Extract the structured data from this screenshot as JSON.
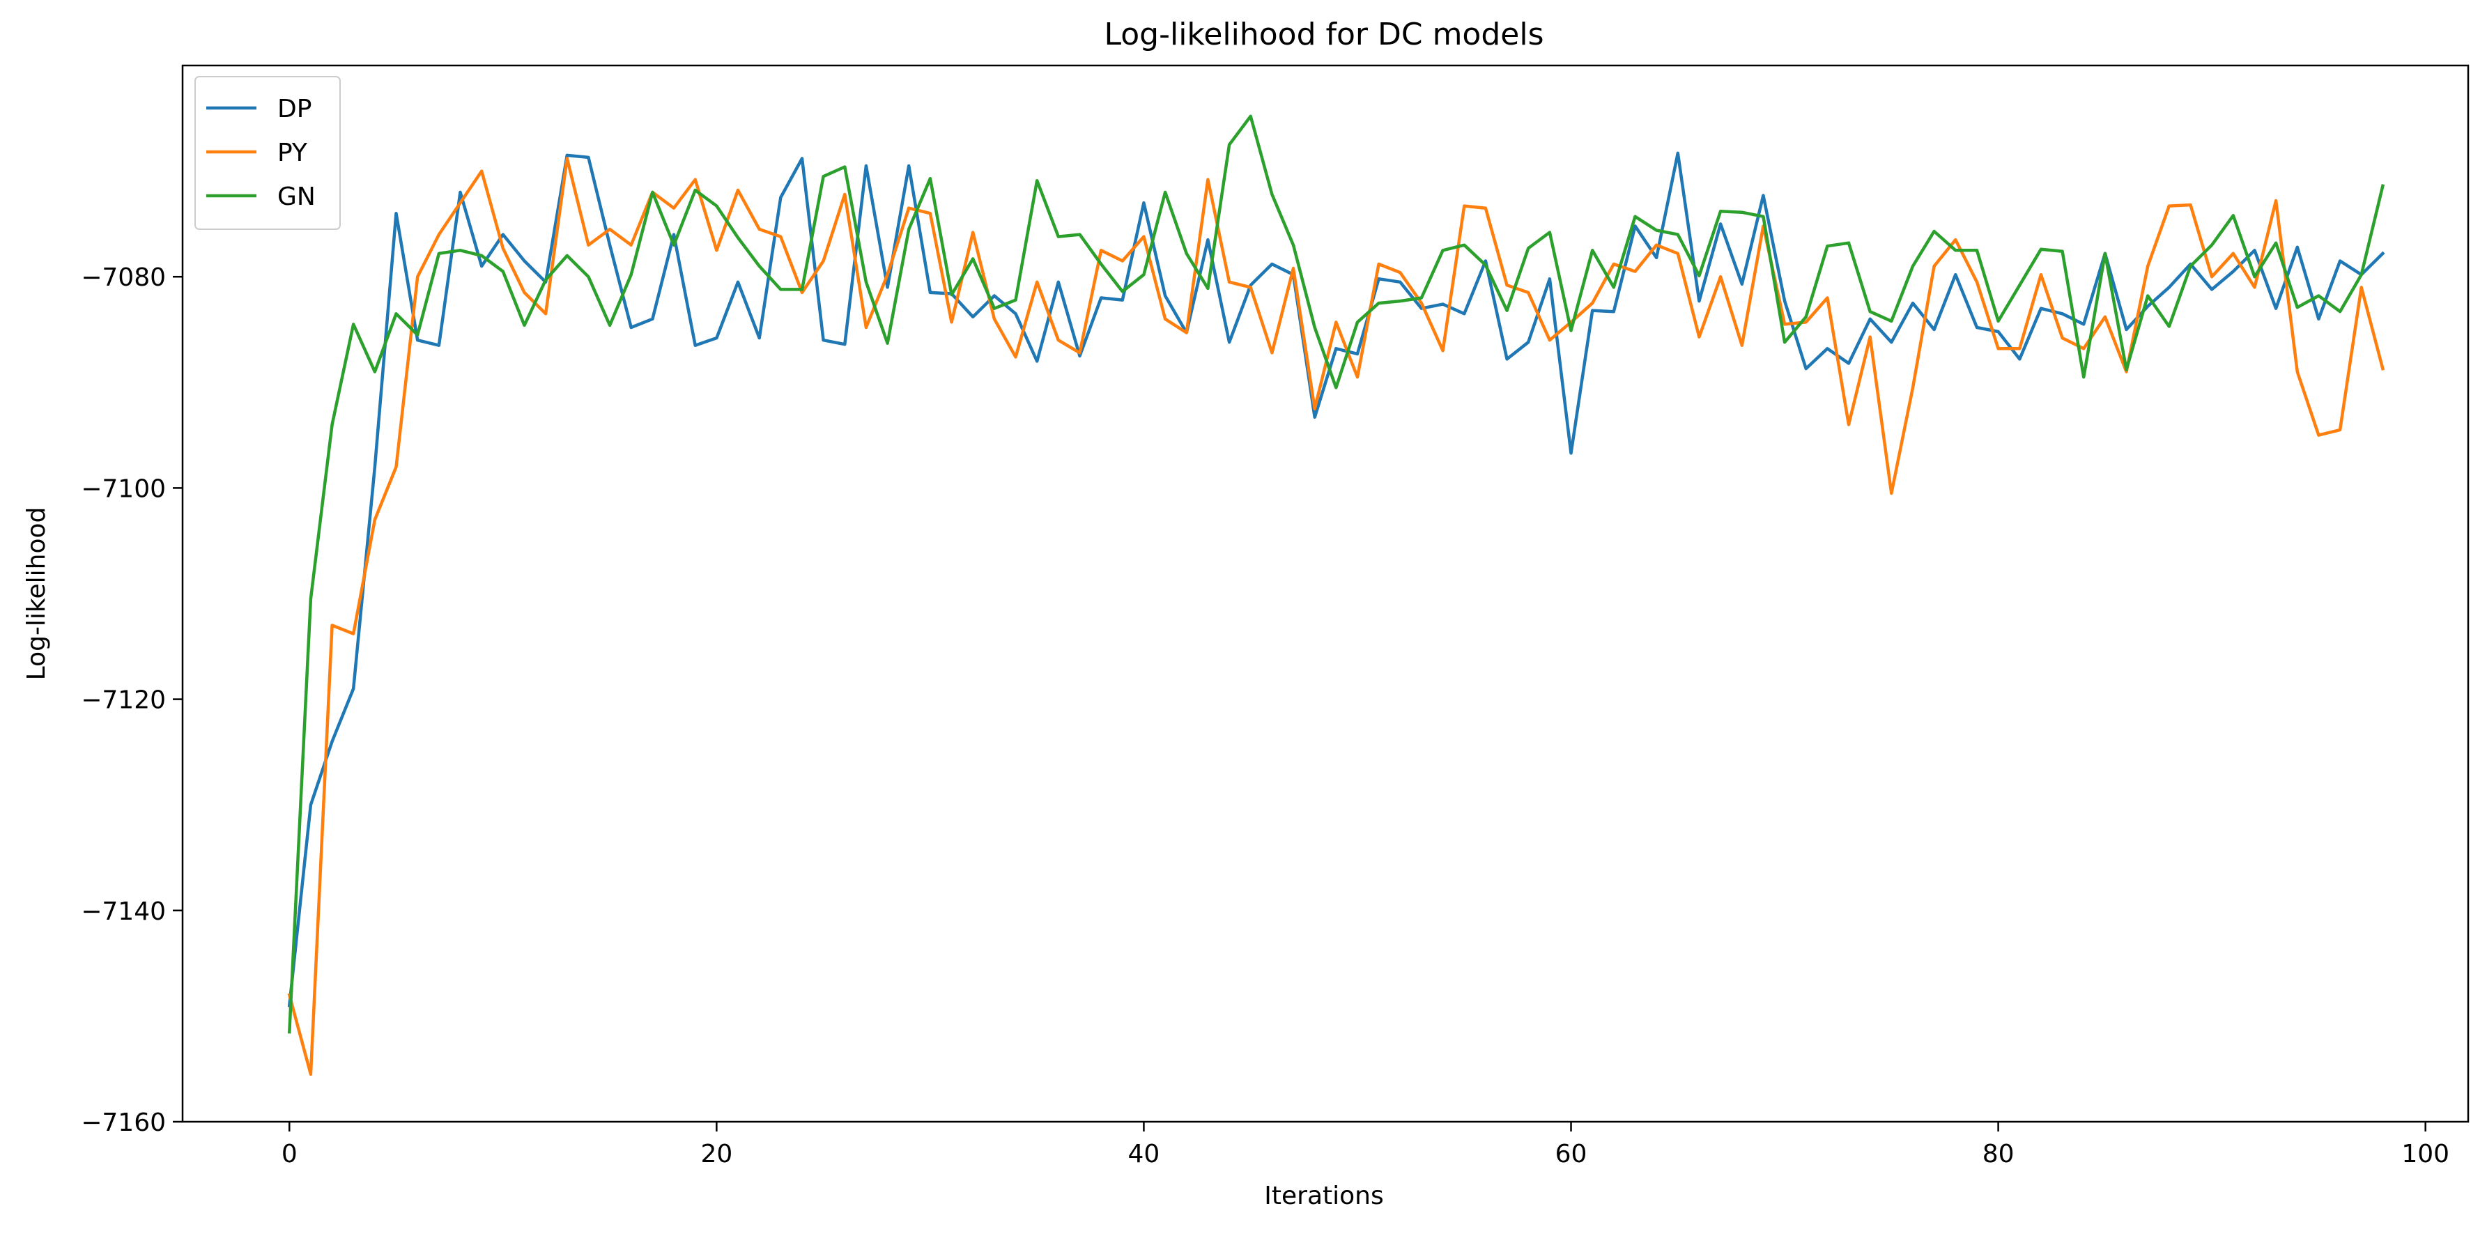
{
  "chart_data": {
    "type": "line",
    "title": "Log-likelihood for DC models",
    "xlabel": "Iterations",
    "ylabel": "Log-likelihood",
    "xlim": [
      -5,
      102
    ],
    "ylim": [
      -7160,
      -7060
    ],
    "xticks": [
      0,
      20,
      40,
      60,
      80,
      100
    ],
    "xtick_labels": [
      "0",
      "20",
      "40",
      "60",
      "80",
      "100"
    ],
    "yticks": [
      -7160,
      -7140,
      -7120,
      -7100,
      -7080
    ],
    "ytick_labels": [
      "−7160",
      "−7140",
      "−7120",
      "−7100",
      "−7080"
    ],
    "grid": false,
    "legend_position": "top-left",
    "series": [
      {
        "name": "DP",
        "color": "#1f77b4",
        "x": [
          0,
          1,
          2,
          3,
          4,
          5,
          6,
          7,
          8,
          9,
          10,
          11,
          12,
          13,
          14,
          15,
          16,
          17,
          18,
          19,
          20,
          21,
          22,
          23,
          24,
          25,
          26,
          27,
          28,
          29,
          30,
          31,
          32,
          33,
          34,
          35,
          36,
          37,
          38,
          39,
          40,
          41,
          42,
          43,
          44,
          45,
          46,
          47,
          48,
          49,
          50,
          51,
          52,
          53,
          54,
          55,
          56,
          57,
          58,
          59,
          60,
          61,
          62,
          63,
          64,
          65,
          66,
          67,
          68,
          69,
          70,
          71,
          72,
          73,
          74,
          75,
          76,
          77,
          78,
          79,
          80,
          81,
          82,
          83,
          84,
          85,
          86,
          87,
          88,
          89,
          90,
          91,
          92,
          93,
          94,
          95,
          96,
          97,
          98
        ],
        "values": [
          -7149,
          -7130,
          -7124,
          -7119,
          -7098,
          -7074,
          -7086,
          -7086.5,
          -7072,
          -7079,
          -7076,
          -7078.5,
          -7080.5,
          -7068.5,
          -7068.7,
          -7077,
          -7084.8,
          -7084,
          -7076,
          -7086.5,
          -7085.8,
          -7080.5,
          -7085.8,
          -7072.5,
          -7068.8,
          -7086,
          -7086.4,
          -7069.5,
          -7081,
          -7069.5,
          -7081.5,
          -7081.6,
          -7083.8,
          -7081.8,
          -7083.5,
          -7088,
          -7080.5,
          -7087.5,
          -7082,
          -7082.2,
          -7073,
          -7081.8,
          -7085.3,
          -7076.5,
          -7086.2,
          -7080.8,
          -7078.8,
          -7079.8,
          -7093.3,
          -7086.8,
          -7087.3,
          -7080.2,
          -7080.5,
          -7083,
          -7082.6,
          -7083.5,
          -7078.5,
          -7087.8,
          -7086.2,
          -7080.2,
          -7096.7,
          -7083.2,
          -7083.3,
          -7075.2,
          -7078.2,
          -7068.3,
          -7082.3,
          -7075,
          -7080.7,
          -7072.3,
          -7082.3,
          -7088.7,
          -7086.8,
          -7088.2,
          -7084,
          -7086.2,
          -7082.5,
          -7085,
          -7079.8,
          -7084.8,
          -7085.2,
          -7087.8,
          -7083,
          -7083.5,
          -7084.5,
          -7077.8,
          -7085,
          -7082.8,
          -7081,
          -7078.8,
          -7081.2,
          -7079.5,
          -7077.5,
          -7083,
          -7077.2,
          -7084,
          -7078.5,
          -7079.8,
          -7077.8
        ]
      },
      {
        "name": "PY",
        "color": "#ff7f0e",
        "x": [
          0,
          1,
          2,
          3,
          4,
          5,
          6,
          7,
          8,
          9,
          10,
          11,
          12,
          13,
          14,
          15,
          16,
          17,
          18,
          19,
          20,
          21,
          22,
          23,
          24,
          25,
          26,
          27,
          28,
          29,
          30,
          31,
          32,
          33,
          34,
          35,
          36,
          37,
          38,
          39,
          40,
          41,
          42,
          43,
          44,
          45,
          46,
          47,
          48,
          49,
          50,
          51,
          52,
          53,
          54,
          55,
          56,
          57,
          58,
          59,
          60,
          61,
          62,
          63,
          64,
          65,
          66,
          67,
          68,
          69,
          70,
          71,
          72,
          73,
          74,
          75,
          76,
          77,
          78,
          79,
          80,
          81,
          82,
          83,
          84,
          85,
          86,
          87,
          88,
          89,
          90,
          91,
          92,
          93,
          94,
          95,
          96,
          97,
          98
        ],
        "values": [
          -7148,
          -7155.5,
          -7113,
          -7113.8,
          -7103,
          -7098,
          -7080,
          -7076,
          -7073,
          -7070,
          -7077.3,
          -7081.5,
          -7083.5,
          -7068.8,
          -7077,
          -7075.5,
          -7077,
          -7072,
          -7073.5,
          -7070.8,
          -7077.5,
          -7071.8,
          -7075.5,
          -7076.2,
          -7081.5,
          -7078.5,
          -7072.2,
          -7084.8,
          -7079.8,
          -7073.5,
          -7074,
          -7084.3,
          -7075.8,
          -7084,
          -7087.6,
          -7080.5,
          -7086,
          -7087.2,
          -7077.5,
          -7078.5,
          -7076.2,
          -7084,
          -7085.3,
          -7070.8,
          -7080.5,
          -7081,
          -7087.2,
          -7079.2,
          -7092.5,
          -7084.3,
          -7089.5,
          -7078.8,
          -7079.6,
          -7082.5,
          -7087,
          -7073.3,
          -7073.5,
          -7080.8,
          -7081.5,
          -7086,
          -7084.3,
          -7082.5,
          -7078.8,
          -7079.5,
          -7077,
          -7077.8,
          -7085.7,
          -7080,
          -7086.5,
          -7075.2,
          -7084.5,
          -7084.3,
          -7082,
          -7094,
          -7085.7,
          -7100.5,
          -7090.5,
          -7079,
          -7076.5,
          -7080.5,
          -7086.8,
          -7086.8,
          -7079.8,
          -7085.8,
          -7086.8,
          -7083.8,
          -7089,
          -7079,
          -7073.3,
          -7073.2,
          -7080,
          -7077.8,
          -7081,
          -7072.8,
          -7089,
          -7095,
          -7094.5,
          -7081,
          -7088.7
        ]
      },
      {
        "name": "GN",
        "color": "#2ca02c",
        "x": [
          0,
          1,
          2,
          3,
          4,
          5,
          6,
          7,
          8,
          9,
          10,
          11,
          12,
          13,
          14,
          15,
          16,
          17,
          18,
          19,
          20,
          21,
          22,
          23,
          24,
          25,
          26,
          27,
          28,
          29,
          30,
          31,
          32,
          33,
          34,
          35,
          36,
          37,
          38,
          39,
          40,
          41,
          42,
          43,
          44,
          45,
          46,
          47,
          48,
          49,
          50,
          51,
          52,
          53,
          54,
          55,
          56,
          57,
          58,
          59,
          60,
          61,
          62,
          63,
          64,
          65,
          66,
          67,
          68,
          69,
          70,
          71,
          72,
          73,
          74,
          75,
          76,
          77,
          78,
          79,
          80,
          81,
          82,
          83,
          84,
          85,
          86,
          87,
          88,
          89,
          90,
          91,
          92,
          93,
          94,
          95,
          96,
          97,
          98
        ],
        "values": [
          -7151.5,
          -7110.5,
          -7094,
          -7084.5,
          -7089,
          -7083.5,
          -7085.5,
          -7077.8,
          -7077.5,
          -7078,
          -7079.5,
          -7084.6,
          -7080.3,
          -7078,
          -7080,
          -7084.6,
          -7079.8,
          -7072,
          -7077,
          -7071.8,
          -7073.3,
          -7076.3,
          -7079,
          -7081.2,
          -7081.2,
          -7070.5,
          -7069.6,
          -7080.5,
          -7086.3,
          -7075.5,
          -7070.7,
          -7081.7,
          -7078.3,
          -7083,
          -7082.2,
          -7070.9,
          -7076.2,
          -7076,
          -7078.8,
          -7081.4,
          -7079.8,
          -7072,
          -7077.8,
          -7081.1,
          -7067.5,
          -7064.8,
          -7072.2,
          -7077,
          -7084.8,
          -7090.5,
          -7084.3,
          -7082.5,
          -7082.3,
          -7082,
          -7077.5,
          -7077,
          -7078.9,
          -7083.2,
          -7077.3,
          -7075.8,
          -7085.1,
          -7077.5,
          -7081,
          -7074.3,
          -7075.6,
          -7076,
          -7079.9,
          -7073.8,
          -7073.9,
          -7074.3,
          -7086.2,
          -7083.8,
          -7077.1,
          -7076.8,
          -7083.3,
          -7084.2,
          -7079,
          -7075.7,
          -7077.5,
          -7077.5,
          -7084.2,
          -7080.8,
          -7077.4,
          -7077.6,
          -7089.5,
          -7077.8,
          -7088.8,
          -7081.8,
          -7084.7,
          -7079,
          -7077,
          -7074.2,
          -7080,
          -7076.8,
          -7082.9,
          -7081.8,
          -7083.3,
          -7079.8,
          -7071.4
        ]
      }
    ]
  }
}
